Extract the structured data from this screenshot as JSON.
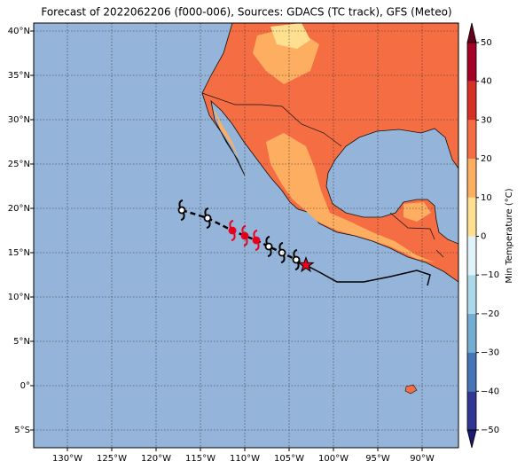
{
  "title": "Forecast of 2022062206 (f000-006), Sources: GDACS (TC track), GFS (Meteo)",
  "lon_ticks": [
    {
      "value": -130,
      "label": "130°W"
    },
    {
      "value": -125,
      "label": "125°W"
    },
    {
      "value": -120,
      "label": "120°W"
    },
    {
      "value": -115,
      "label": "115°W"
    },
    {
      "value": -110,
      "label": "110°W"
    },
    {
      "value": -105,
      "label": "105°W"
    },
    {
      "value": -100,
      "label": "100°W"
    },
    {
      "value": -95,
      "label": "95°W"
    },
    {
      "value": -90,
      "label": "90°W"
    }
  ],
  "lat_ticks": [
    {
      "value": 40,
      "label": "40°N"
    },
    {
      "value": 35,
      "label": "35°N"
    },
    {
      "value": 30,
      "label": "30°N"
    },
    {
      "value": 25,
      "label": "25°N"
    },
    {
      "value": 20,
      "label": "20°N"
    },
    {
      "value": 15,
      "label": "15°N"
    },
    {
      "value": 10,
      "label": "10°N"
    },
    {
      "value": 5,
      "label": "5°N"
    },
    {
      "value": 0,
      "label": "0°"
    },
    {
      "value": -5,
      "label": "5°S"
    }
  ],
  "colorbar": {
    "label": "Min Temperature (°C)",
    "ticks": [
      50,
      40,
      30,
      20,
      10,
      0,
      {
        "value": -10,
        "label": "−10"
      },
      {
        "value": -20,
        "label": "−20"
      },
      {
        "value": -30,
        "label": "−30"
      },
      {
        "value": -40,
        "label": "−40"
      },
      {
        "value": -50,
        "label": "−50"
      }
    ],
    "colors": [
      "#313695",
      "#4575b4",
      "#74add1",
      "#abd9e9",
      "#e0f3f8",
      "#fee090",
      "#fdae61",
      "#f46d43",
      "#d73027",
      "#a50026"
    ],
    "over_color": "#67001f",
    "under_color": "#1a1a6e"
  },
  "track": [
    {
      "lon": -117.1,
      "lat": 19.8,
      "color": "#000000"
    },
    {
      "lon": -114.2,
      "lat": 18.9,
      "color": "#000000"
    },
    {
      "lon": -111.4,
      "lat": 17.5,
      "color": "#e8001c"
    },
    {
      "lon": -110.0,
      "lat": 16.9,
      "color": "#e8001c"
    },
    {
      "lon": -108.7,
      "lat": 16.4,
      "color": "#e8001c"
    },
    {
      "lon": -107.3,
      "lat": 15.7,
      "color": "#000000"
    },
    {
      "lon": -105.8,
      "lat": 15.0,
      "color": "#000000"
    },
    {
      "lon": -104.2,
      "lat": 14.2,
      "color": "#000000"
    }
  ],
  "current_position": {
    "lon": -103.1,
    "lat": 13.6
  }
}
